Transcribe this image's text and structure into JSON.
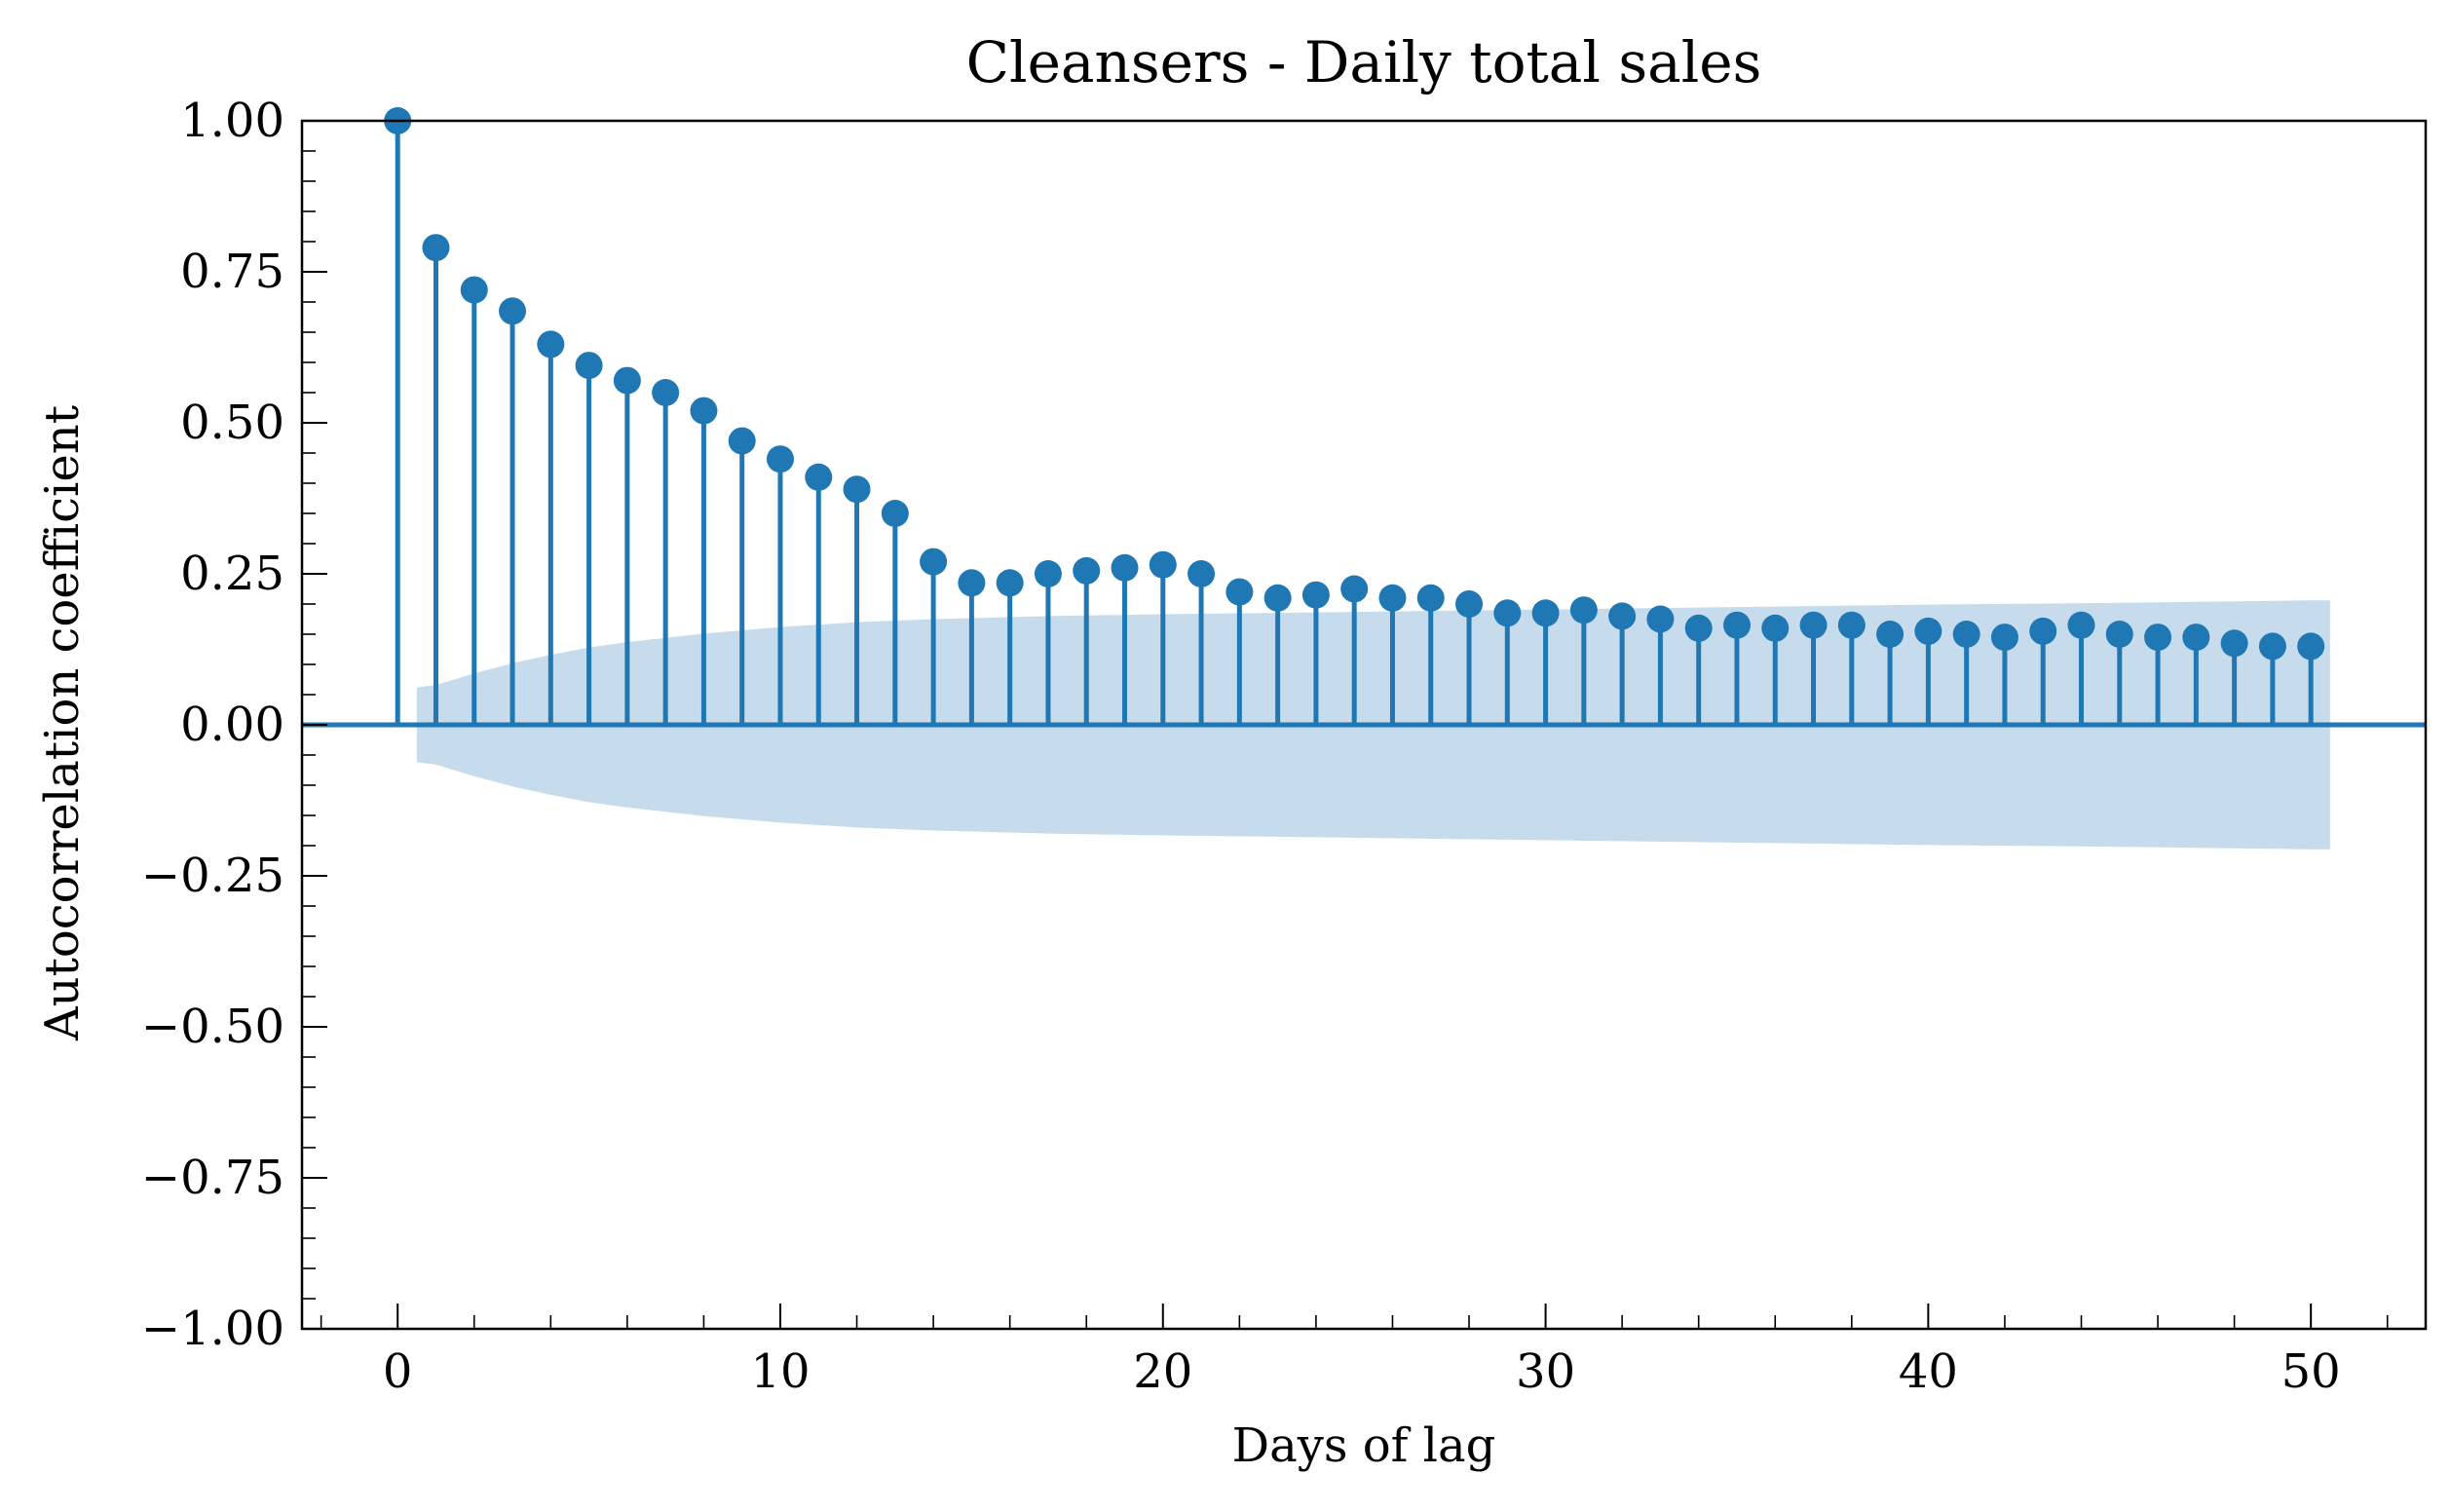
{
  "chart_data": {
    "type": "stem",
    "title": "Cleansers - Daily total sales",
    "xlabel": "Days of lag",
    "ylabel": "Autocorrelation coefficient",
    "xlim": [
      -2.5,
      53
    ],
    "ylim": [
      -1.0,
      1.0
    ],
    "x_ticks": [
      0,
      10,
      20,
      30,
      40,
      50
    ],
    "x_tick_labels": [
      "0",
      "10",
      "20",
      "30",
      "40",
      "50"
    ],
    "y_ticks": [
      1.0,
      0.75,
      0.5,
      0.25,
      0.0,
      -0.25,
      -0.5,
      -0.75,
      -1.0
    ],
    "y_tick_labels": [
      "1.00",
      "0.75",
      "0.50",
      "0.25",
      "0.00",
      "−0.25",
      "−0.50",
      "−0.75",
      "−1.00"
    ],
    "x_minor_step": 2,
    "y_minor_step": 0.05,
    "grid": false,
    "colors": {
      "stem": "#1f77b4",
      "band": "#c6dbec",
      "axes": "#000000"
    },
    "lags": [
      0,
      1,
      2,
      3,
      4,
      5,
      6,
      7,
      8,
      9,
      10,
      11,
      12,
      13,
      14,
      15,
      16,
      17,
      18,
      19,
      20,
      21,
      22,
      23,
      24,
      25,
      26,
      27,
      28,
      29,
      30,
      31,
      32,
      33,
      34,
      35,
      36,
      37,
      38,
      39,
      40,
      41,
      42,
      43,
      44,
      45,
      46,
      47,
      48,
      49,
      50
    ],
    "acf": [
      1.0,
      0.79,
      0.72,
      0.685,
      0.63,
      0.595,
      0.57,
      0.55,
      0.52,
      0.47,
      0.44,
      0.41,
      0.39,
      0.35,
      0.27,
      0.235,
      0.235,
      0.25,
      0.255,
      0.26,
      0.265,
      0.25,
      0.22,
      0.21,
      0.215,
      0.225,
      0.21,
      0.21,
      0.2,
      0.185,
      0.185,
      0.19,
      0.18,
      0.175,
      0.16,
      0.165,
      0.16,
      0.165,
      0.165,
      0.15,
      0.155,
      0.15,
      0.145,
      0.155,
      0.165,
      0.15,
      0.145,
      0.145,
      0.135,
      0.13,
      0.13
    ],
    "confidence_band": {
      "x": [
        0.5,
        1,
        2,
        3,
        4,
        5,
        6,
        8,
        10,
        12,
        14,
        17,
        20,
        25,
        30,
        35,
        40,
        45,
        50,
        50.5
      ],
      "upper": [
        0.062,
        0.066,
        0.085,
        0.102,
        0.116,
        0.128,
        0.137,
        0.151,
        0.162,
        0.17,
        0.175,
        0.18,
        0.183,
        0.187,
        0.191,
        0.195,
        0.199,
        0.202,
        0.206,
        0.206
      ]
    }
  }
}
